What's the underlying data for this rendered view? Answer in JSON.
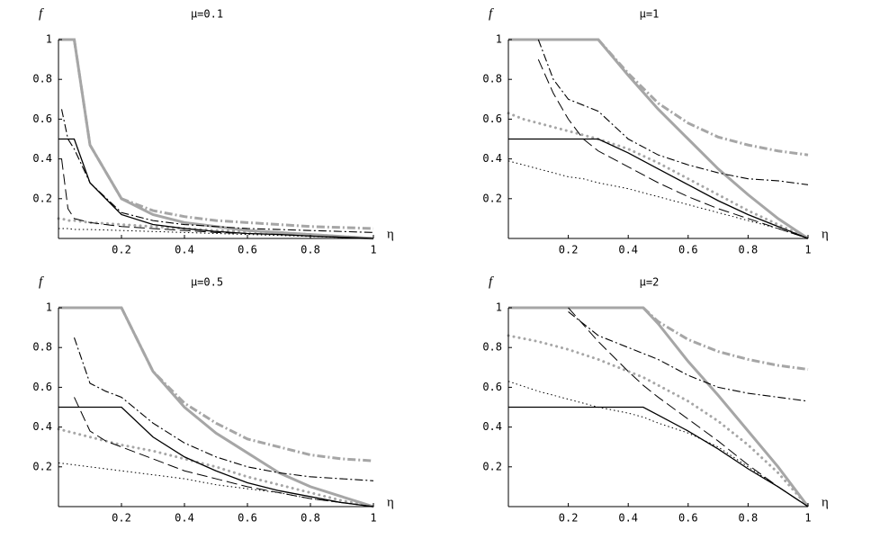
{
  "chart_data": [
    {
      "type": "line",
      "title": "μ=0.1",
      "xlabel": "η",
      "ylabel": "f",
      "xlim": [
        0,
        1
      ],
      "ylim": [
        0,
        1
      ],
      "xticks": [
        0.2,
        0.4,
        0.6,
        0.8,
        1
      ],
      "yticks": [
        0.2,
        0.4,
        0.6,
        0.8,
        1
      ],
      "x": [
        0,
        0.01,
        0.03,
        0.05,
        0.1,
        0.2,
        0.3,
        0.4,
        0.5,
        0.6,
        0.7,
        0.8,
        0.9,
        1
      ],
      "series": [
        {
          "color": "#a6a6a6",
          "dash": "solid",
          "width": 3,
          "values": [
            1,
            1,
            1,
            1,
            0.47,
            0.2,
            0.12,
            0.08,
            0.06,
            0.04,
            0.03,
            0.02,
            0.01,
            0
          ]
        },
        {
          "color": "#a6a6a6",
          "dash": "dashdot",
          "width": 3,
          "values": [
            null,
            null,
            null,
            1,
            0.47,
            0.2,
            0.14,
            0.11,
            0.09,
            0.08,
            0.07,
            0.06,
            0.055,
            0.05
          ]
        },
        {
          "color": "#a6a6a6",
          "dash": "dotted",
          "width": 3,
          "values": [
            0.1,
            0.1,
            0.09,
            0.09,
            0.08,
            0.07,
            0.06,
            0.05,
            0.04,
            0.035,
            0.03,
            0.02,
            0.01,
            0
          ]
        },
        {
          "color": "#000000",
          "dash": "solid",
          "width": 1.3,
          "values": [
            0.5,
            0.5,
            0.5,
            0.5,
            0.28,
            0.12,
            0.07,
            0.05,
            0.035,
            0.025,
            0.02,
            0.012,
            0.006,
            0
          ]
        },
        {
          "color": "#000000",
          "dash": "dashdot",
          "width": 1.1,
          "values": [
            null,
            0.65,
            0.5,
            0.45,
            0.28,
            0.13,
            0.09,
            0.07,
            0.06,
            0.05,
            0.045,
            0.04,
            0.035,
            0.03
          ]
        },
        {
          "color": "#000000",
          "dash": "dashed",
          "width": 1,
          "values": [
            null,
            0.4,
            0.15,
            0.1,
            0.08,
            0.06,
            0.05,
            0.04,
            0.03,
            0.025,
            0.02,
            0.012,
            0.006,
            0
          ]
        },
        {
          "color": "#000000",
          "dash": "dotted",
          "width": 1,
          "values": [
            0.05,
            0.05,
            0.05,
            0.045,
            0.045,
            0.04,
            0.035,
            0.03,
            0.025,
            0.02,
            0.015,
            0.01,
            0.005,
            0
          ]
        }
      ]
    },
    {
      "type": "line",
      "title": "μ=1",
      "xlabel": "η",
      "ylabel": "f",
      "xlim": [
        0,
        1
      ],
      "ylim": [
        0,
        1
      ],
      "xticks": [
        0.2,
        0.4,
        0.6,
        0.8,
        1
      ],
      "yticks": [
        0.2,
        0.4,
        0.6,
        0.8,
        1
      ],
      "x": [
        0,
        0.05,
        0.1,
        0.15,
        0.2,
        0.25,
        0.3,
        0.4,
        0.5,
        0.6,
        0.7,
        0.8,
        0.9,
        1
      ],
      "series": [
        {
          "color": "#a6a6a6",
          "dash": "solid",
          "width": 3,
          "values": [
            1,
            1,
            1,
            1,
            1,
            1,
            1,
            0.82,
            0.65,
            0.5,
            0.35,
            0.22,
            0.1,
            0
          ]
        },
        {
          "color": "#a6a6a6",
          "dash": "dashdot",
          "width": 3,
          "values": [
            null,
            null,
            null,
            null,
            null,
            null,
            1,
            0.83,
            0.68,
            0.58,
            0.51,
            0.47,
            0.44,
            0.42
          ]
        },
        {
          "color": "#a6a6a6",
          "dash": "dotted",
          "width": 3,
          "values": [
            0.63,
            0.6,
            0.58,
            0.56,
            0.54,
            0.52,
            0.5,
            0.45,
            0.38,
            0.3,
            0.22,
            0.14,
            0.07,
            0
          ]
        },
        {
          "color": "#000000",
          "dash": "solid",
          "width": 1.3,
          "values": [
            0.5,
            0.5,
            0.5,
            0.5,
            0.5,
            0.5,
            0.5,
            0.43,
            0.35,
            0.27,
            0.19,
            0.12,
            0.06,
            0
          ]
        },
        {
          "color": "#000000",
          "dash": "dashdot",
          "width": 1.1,
          "values": [
            null,
            null,
            1,
            0.8,
            0.7,
            0.67,
            0.64,
            0.5,
            0.42,
            0.37,
            0.33,
            0.3,
            0.29,
            0.27
          ]
        },
        {
          "color": "#000000",
          "dash": "dashed",
          "width": 1,
          "values": [
            null,
            null,
            0.9,
            0.73,
            0.6,
            0.5,
            0.44,
            0.36,
            0.28,
            0.21,
            0.15,
            0.1,
            0.05,
            0
          ]
        },
        {
          "color": "#000000",
          "dash": "dotted",
          "width": 1,
          "values": [
            0.39,
            0.37,
            0.35,
            0.33,
            0.31,
            0.3,
            0.28,
            0.25,
            0.21,
            0.17,
            0.13,
            0.09,
            0.05,
            0
          ]
        }
      ]
    },
    {
      "type": "line",
      "title": "μ=0.5",
      "xlabel": "η",
      "ylabel": "f",
      "xlim": [
        0,
        1
      ],
      "ylim": [
        0,
        1
      ],
      "xticks": [
        0.2,
        0.4,
        0.6,
        0.8,
        1
      ],
      "yticks": [
        0.2,
        0.4,
        0.6,
        0.8,
        1
      ],
      "x": [
        0,
        0.05,
        0.1,
        0.15,
        0.2,
        0.3,
        0.4,
        0.5,
        0.6,
        0.7,
        0.8,
        0.9,
        1
      ],
      "series": [
        {
          "color": "#a6a6a6",
          "dash": "solid",
          "width": 3,
          "values": [
            1,
            1,
            1,
            1,
            1,
            0.68,
            0.5,
            0.37,
            0.27,
            0.17,
            0.1,
            0.05,
            0
          ]
        },
        {
          "color": "#a6a6a6",
          "dash": "dashdot",
          "width": 3,
          "values": [
            null,
            null,
            null,
            null,
            1,
            0.68,
            0.52,
            0.42,
            0.34,
            0.3,
            0.26,
            0.24,
            0.23
          ]
        },
        {
          "color": "#a6a6a6",
          "dash": "dotted",
          "width": 3,
          "values": [
            0.39,
            0.37,
            0.35,
            0.33,
            0.31,
            0.28,
            0.24,
            0.2,
            0.15,
            0.11,
            0.07,
            0.03,
            0
          ]
        },
        {
          "color": "#000000",
          "dash": "solid",
          "width": 1.3,
          "values": [
            0.5,
            0.5,
            0.5,
            0.5,
            0.5,
            0.35,
            0.25,
            0.18,
            0.12,
            0.08,
            0.05,
            0.02,
            0
          ]
        },
        {
          "color": "#000000",
          "dash": "dashdot",
          "width": 1.1,
          "values": [
            null,
            0.85,
            0.62,
            0.58,
            0.55,
            0.42,
            0.32,
            0.25,
            0.2,
            0.17,
            0.15,
            0.14,
            0.13
          ]
        },
        {
          "color": "#000000",
          "dash": "dashed",
          "width": 1,
          "values": [
            null,
            0.55,
            0.38,
            0.33,
            0.3,
            0.24,
            0.18,
            0.14,
            0.1,
            0.07,
            0.04,
            0.02,
            0
          ]
        },
        {
          "color": "#000000",
          "dash": "dotted",
          "width": 1,
          "values": [
            0.22,
            0.21,
            0.2,
            0.19,
            0.18,
            0.16,
            0.14,
            0.11,
            0.09,
            0.07,
            0.04,
            0.02,
            0
          ]
        }
      ]
    },
    {
      "type": "line",
      "title": "μ=2",
      "xlabel": "η",
      "ylabel": "f",
      "xlim": [
        0,
        1
      ],
      "ylim": [
        0,
        1
      ],
      "xticks": [
        0.2,
        0.4,
        0.6,
        0.8,
        1
      ],
      "yticks": [
        0.2,
        0.4,
        0.6,
        0.8,
        1
      ],
      "x": [
        0,
        0.1,
        0.2,
        0.3,
        0.4,
        0.45,
        0.5,
        0.6,
        0.7,
        0.8,
        0.9,
        1
      ],
      "series": [
        {
          "color": "#a6a6a6",
          "dash": "solid",
          "width": 3,
          "values": [
            1,
            1,
            1,
            1,
            1,
            1,
            0.92,
            0.73,
            0.56,
            0.38,
            0.2,
            0
          ]
        },
        {
          "color": "#a6a6a6",
          "dash": "dashdot",
          "width": 3,
          "values": [
            null,
            null,
            null,
            null,
            null,
            1,
            0.93,
            0.84,
            0.78,
            0.74,
            0.71,
            0.69
          ]
        },
        {
          "color": "#a6a6a6",
          "dash": "dotted",
          "width": 3,
          "values": [
            0.86,
            0.83,
            0.79,
            0.74,
            0.68,
            0.65,
            0.61,
            0.53,
            0.43,
            0.31,
            0.17,
            0
          ]
        },
        {
          "color": "#000000",
          "dash": "solid",
          "width": 1.3,
          "values": [
            0.5,
            0.5,
            0.5,
            0.5,
            0.5,
            0.5,
            0.46,
            0.38,
            0.29,
            0.19,
            0.1,
            0
          ]
        },
        {
          "color": "#000000",
          "dash": "dashdot",
          "width": 1.1,
          "values": [
            null,
            null,
            0.98,
            0.86,
            0.8,
            0.77,
            0.74,
            0.66,
            0.6,
            0.57,
            0.55,
            0.53
          ]
        },
        {
          "color": "#000000",
          "dash": "dashed",
          "width": 1,
          "values": [
            null,
            null,
            1,
            0.83,
            0.68,
            0.61,
            0.55,
            0.44,
            0.33,
            0.21,
            0.1,
            0
          ]
        },
        {
          "color": "#000000",
          "dash": "dotted",
          "width": 1,
          "values": [
            0.63,
            0.58,
            0.54,
            0.5,
            0.47,
            0.45,
            0.42,
            0.37,
            0.3,
            0.2,
            0.1,
            0
          ]
        }
      ]
    }
  ]
}
